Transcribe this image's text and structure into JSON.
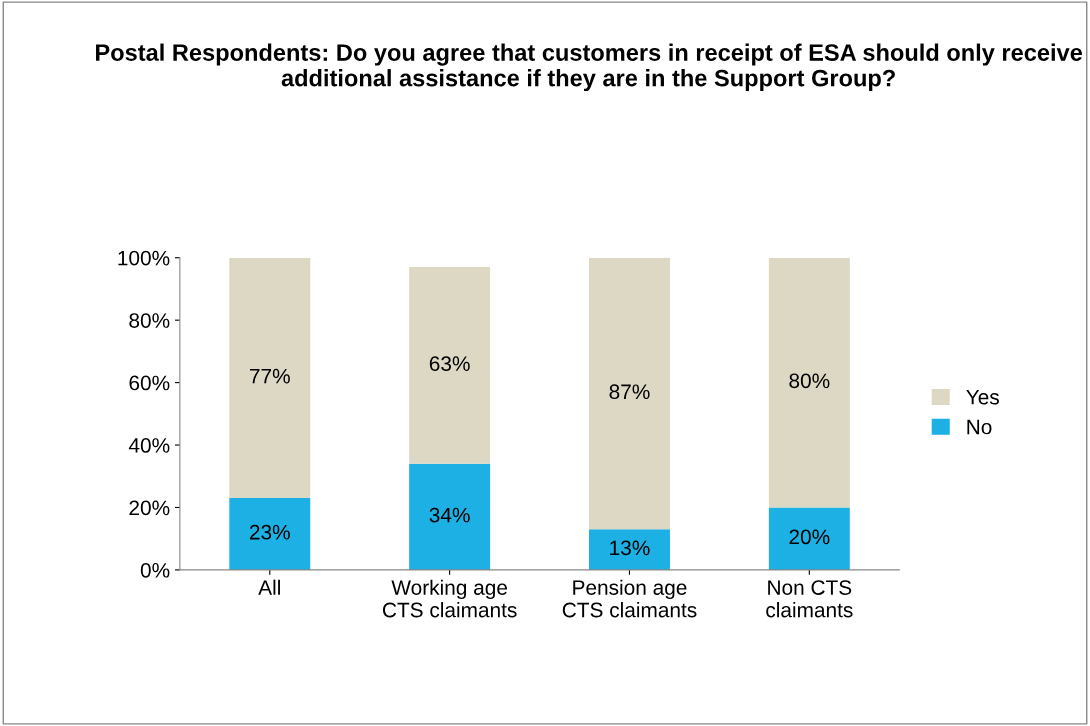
{
  "chart_data": {
    "type": "bar",
    "title": "Postal Respondents: Do you agree that customers in receipt of ESA should only receive additional assistance if they are in the Support Group?",
    "categories": [
      "All",
      "Working age\nCTS claimants",
      "Pension age\nCTS claimants",
      "Non CTS\nclaimants"
    ],
    "stacked": true,
    "series": [
      {
        "name": "No",
        "color": "#1cb0e4",
        "values": [
          23,
          34,
          13,
          20
        ],
        "value_labels": [
          "23%",
          "34%",
          "13%",
          "20%"
        ]
      },
      {
        "name": "Yes",
        "color": "#dcd8c4",
        "values": [
          77,
          63,
          87,
          80
        ],
        "value_labels": [
          "77%",
          "63%",
          "87%",
          "80%"
        ]
      }
    ],
    "ylim": [
      0,
      100
    ],
    "yticks": [
      {
        "value": 0,
        "label": "0%"
      },
      {
        "value": 20,
        "label": "20%"
      },
      {
        "value": 40,
        "label": "40%"
      },
      {
        "value": 60,
        "label": "60%"
      },
      {
        "value": 80,
        "label": "80%"
      },
      {
        "value": 100,
        "label": "100%"
      }
    ],
    "grid": false,
    "legend": "right"
  }
}
